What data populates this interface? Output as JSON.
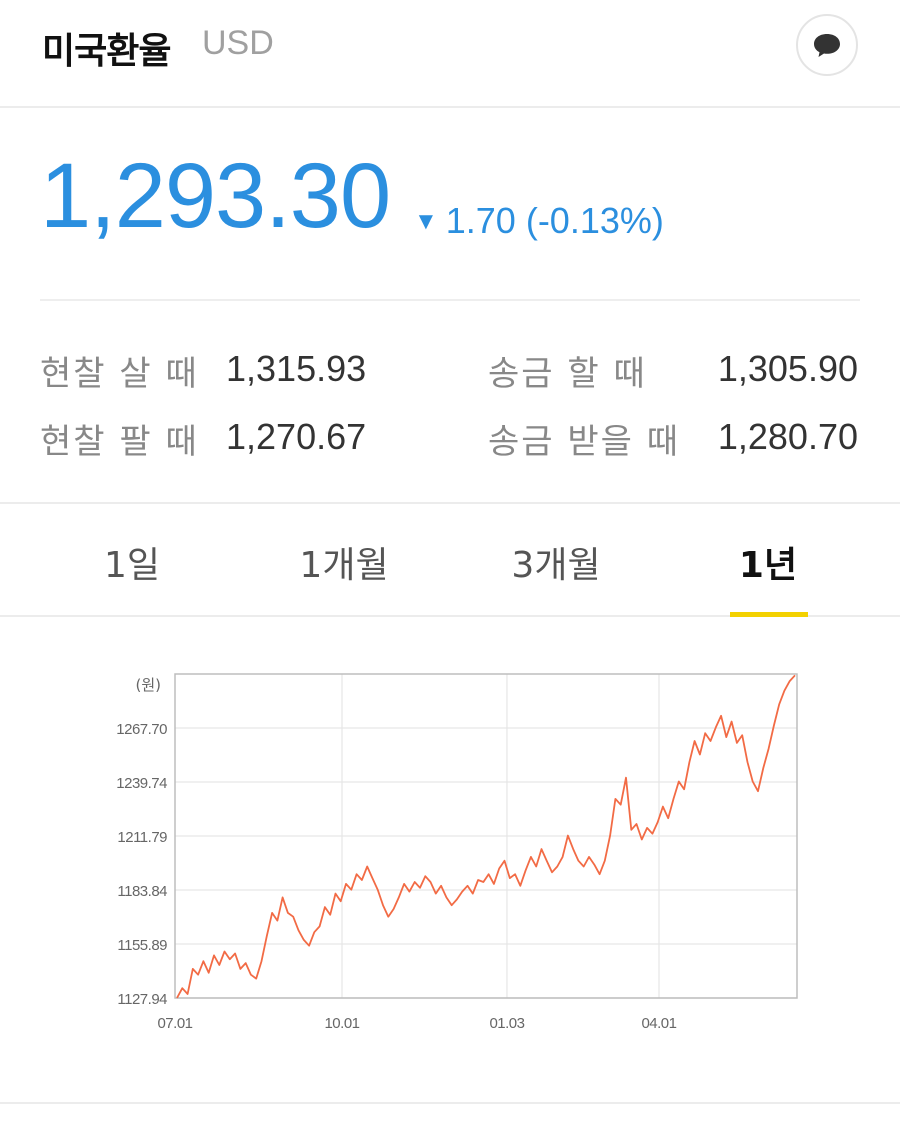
{
  "header": {
    "title": "미국환율",
    "code": "USD",
    "chat_icon": "speech-bubble-icon"
  },
  "quote": {
    "price": "1,293.30",
    "change_arrow": "▼",
    "change": "1.70 (-0.13%)",
    "color": "#2b8fdf"
  },
  "rates": {
    "cash_buy_label": "현찰 살 때",
    "cash_buy_value": "1,315.93",
    "cash_sell_label": "현찰 팔 때",
    "cash_sell_value": "1,270.67",
    "send_label": "송금 할 때",
    "send_value": "1,305.90",
    "receive_label": "송금 받을 때",
    "receive_value": "1,280.70"
  },
  "tabs": [
    {
      "label": "1일",
      "active": false
    },
    {
      "label": "1개월",
      "active": false
    },
    {
      "label": "3개월",
      "active": false
    },
    {
      "label": "1년",
      "active": true
    }
  ],
  "chart_data": {
    "type": "line",
    "unit_label": "(원)",
    "y_ticks": [
      "1127.94",
      "1155.89",
      "1183.84",
      "1211.79",
      "1239.74",
      "1267.70"
    ],
    "ylim": [
      1127.94,
      1295.66
    ],
    "x_ticks": [
      "07.01",
      "10.01",
      "01.03",
      "04.01"
    ],
    "grid": true,
    "line_color": "#f26b45",
    "series": [
      {
        "values": [
          1128,
          1133,
          1130,
          1143,
          1140,
          1147,
          1141,
          1150,
          1145,
          1152,
          1148,
          1151,
          1143,
          1146,
          1140,
          1138,
          1147,
          1160,
          1172,
          1168,
          1180,
          1172,
          1170,
          1163,
          1158,
          1155,
          1162,
          1165,
          1175,
          1171,
          1182,
          1178,
          1187,
          1184,
          1192,
          1189,
          1196,
          1190,
          1184,
          1176,
          1170,
          1174,
          1180,
          1187,
          1183,
          1188,
          1185,
          1191,
          1188,
          1182,
          1186,
          1180,
          1176,
          1179,
          1183,
          1186,
          1182,
          1189,
          1188,
          1192,
          1187,
          1195,
          1199,
          1190,
          1192,
          1186,
          1194,
          1201,
          1196,
          1205,
          1199,
          1193,
          1196,
          1201,
          1212,
          1205,
          1199,
          1196,
          1201,
          1197,
          1192,
          1199,
          1212,
          1231,
          1228,
          1242,
          1215,
          1218,
          1210,
          1216,
          1213,
          1219,
          1227,
          1221,
          1231,
          1240,
          1236,
          1250,
          1261,
          1254,
          1265,
          1261,
          1268,
          1274,
          1263,
          1271,
          1260,
          1264,
          1250,
          1240,
          1235,
          1247,
          1257,
          1269,
          1280,
          1287,
          1292,
          1295
        ]
      }
    ]
  }
}
